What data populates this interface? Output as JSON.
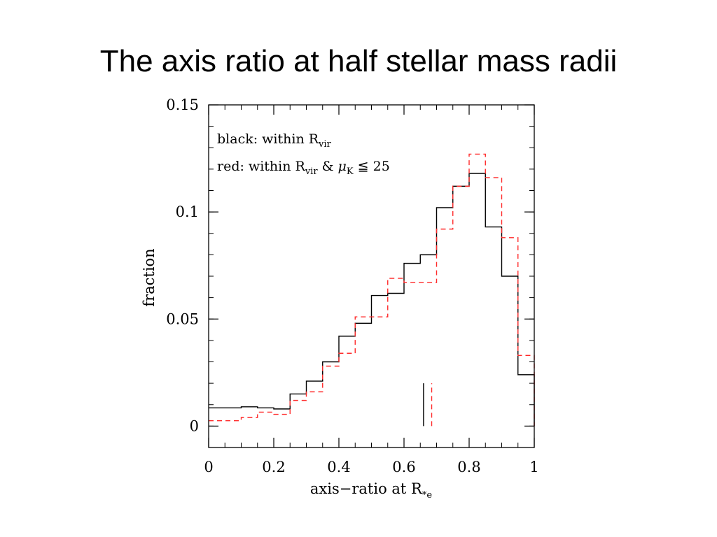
{
  "slide": {
    "title": "The axis ratio at half stellar mass radii"
  },
  "chart_data": {
    "type": "line",
    "step": true,
    "xlabel": {
      "text": "axis−ratio at R",
      "sub": "*e"
    },
    "ylabel": "fraction",
    "xlim": [
      0,
      1
    ],
    "ylim": [
      -0.01,
      0.15
    ],
    "x_ticks": [
      0,
      0.2,
      0.4,
      0.6,
      0.8,
      1
    ],
    "x_tick_labels": [
      "0",
      "0.2",
      "0.4",
      "0.6",
      "0.8",
      "1"
    ],
    "y_ticks": [
      0,
      0.05,
      0.1,
      0.15
    ],
    "y_tick_labels": [
      "0",
      "0.05",
      "0.1",
      "0.15"
    ],
    "bin_edges": [
      0,
      0.05,
      0.1,
      0.15,
      0.2,
      0.25,
      0.3,
      0.35,
      0.4,
      0.45,
      0.5,
      0.55,
      0.6,
      0.65,
      0.7,
      0.75,
      0.8,
      0.85,
      0.9,
      0.95,
      1.0
    ],
    "legend": {
      "position": "top-left",
      "lines": [
        {
          "prefix": "black: within R",
          "sub": "vir",
          "suffix": ""
        },
        {
          "prefix": "red: within R",
          "sub": "vir",
          "suffix": " & ",
          "mu": "μ",
          "mu_sub": "K",
          "tail": " ≦ 25"
        }
      ]
    },
    "series": [
      {
        "color": "#000000",
        "dash": "solid",
        "values": [
          0.0085,
          0.0085,
          0.009,
          0.0085,
          0.008,
          0.015,
          0.021,
          0.03,
          0.042,
          0.048,
          0.061,
          0.062,
          0.076,
          0.08,
          0.102,
          0.112,
          0.118,
          0.093,
          0.07,
          0.024
        ],
        "marker_x": 0.66
      },
      {
        "color": "#ff2a2a",
        "dash": "dashed",
        "values": [
          0.0025,
          0.0025,
          0.004,
          0.0065,
          0.0055,
          0.012,
          0.016,
          0.028,
          0.034,
          0.051,
          0.051,
          0.069,
          0.067,
          0.067,
          0.092,
          0.112,
          0.127,
          0.116,
          0.088,
          0.033
        ],
        "marker_x": 0.685
      }
    ],
    "marker_range": [
      0,
      0.02
    ]
  }
}
